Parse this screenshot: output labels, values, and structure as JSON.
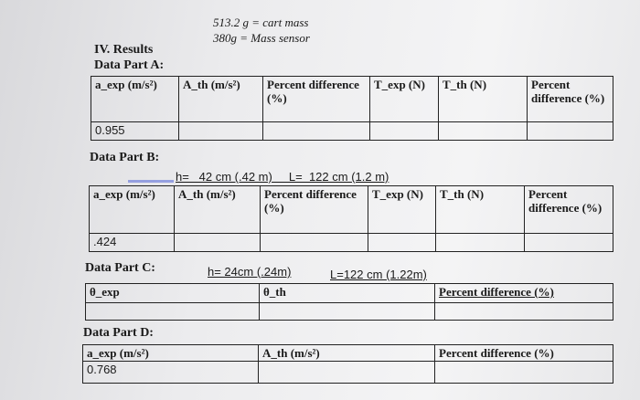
{
  "header": {
    "cart_mass": "513.2 g = cart mass",
    "sensor_mass": "380g = Mass sensor"
  },
  "section": {
    "title": "IV. Results"
  },
  "part_a": {
    "label": "Data Part A:",
    "headers": [
      "a_exp (m/s²)",
      "A_th (m/s²)",
      "Percent difference (%)",
      "T_exp (N)",
      "T_th (N)",
      "Percent difference (%)"
    ],
    "row": [
      "0.955",
      "",
      "",
      "",
      "",
      ""
    ]
  },
  "part_b": {
    "label": "Data Part B:",
    "params": "h=   42 cm (.42 m)     L=  122 cm (1.2 m)",
    "headers": [
      "a_exp (m/s²)",
      "A_th (m/s²)",
      "Percent difference (%)",
      "T_exp (N)",
      "T_th (N)",
      "Percent difference (%)"
    ],
    "row": [
      ".424",
      "",
      "",
      "",
      "",
      ""
    ]
  },
  "part_c": {
    "label": "Data Part C:",
    "params_h": "h= 24cm (.24m)",
    "params_l": "L=122 cm (1.22m)",
    "headers": [
      "θ_exp",
      "θ_th",
      "Percent difference (%)"
    ]
  },
  "part_d": {
    "label": "Data Part D:",
    "headers": [
      "a_exp (m/s²)",
      "A_th (m/s²)",
      "Percent difference (%)"
    ],
    "row": [
      "0.768",
      "",
      ""
    ]
  }
}
